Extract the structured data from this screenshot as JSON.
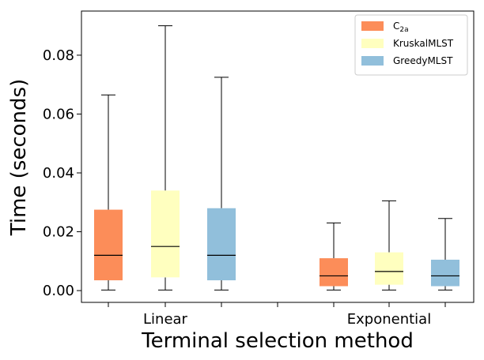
{
  "chart_data": {
    "type": "boxplot",
    "title": "",
    "xlabel": "Terminal selection method",
    "ylabel": "Time (seconds)",
    "ylim": [
      -0.004,
      0.095
    ],
    "yticks": [
      "0.00",
      "0.02",
      "0.04",
      "0.06",
      "0.08"
    ],
    "ytick_values": [
      0.0,
      0.02,
      0.04,
      0.06,
      0.08
    ],
    "categories": [
      "Linear",
      "Exponential"
    ],
    "legend_position": "top-right",
    "series": [
      {
        "name": "C2a",
        "legend_label_main": "C",
        "legend_label_sub": "2a",
        "color": "#fc8d59",
        "boxes": [
          {
            "whislo": 0.0002,
            "q1": 0.0035,
            "med": 0.012,
            "q3": 0.0275,
            "whishi": 0.0665
          },
          {
            "whislo": 0.0002,
            "q1": 0.0015,
            "med": 0.005,
            "q3": 0.011,
            "whishi": 0.023
          }
        ]
      },
      {
        "name": "KruskalMLST",
        "legend_label_main": "KruskalMLST",
        "legend_label_sub": "",
        "color": "#ffffbf",
        "boxes": [
          {
            "whislo": 0.0002,
            "q1": 0.0045,
            "med": 0.015,
            "q3": 0.034,
            "whishi": 0.09
          },
          {
            "whislo": 0.0002,
            "q1": 0.002,
            "med": 0.0065,
            "q3": 0.013,
            "whishi": 0.0305
          }
        ]
      },
      {
        "name": "GreedyMLST",
        "legend_label_main": "GreedyMLST",
        "legend_label_sub": "",
        "color": "#91bfdb",
        "boxes": [
          {
            "whislo": 0.0002,
            "q1": 0.0035,
            "med": 0.012,
            "q3": 0.028,
            "whishi": 0.0725
          },
          {
            "whislo": 0.0002,
            "q1": 0.0015,
            "med": 0.005,
            "q3": 0.0105,
            "whishi": 0.0245
          }
        ]
      }
    ]
  }
}
